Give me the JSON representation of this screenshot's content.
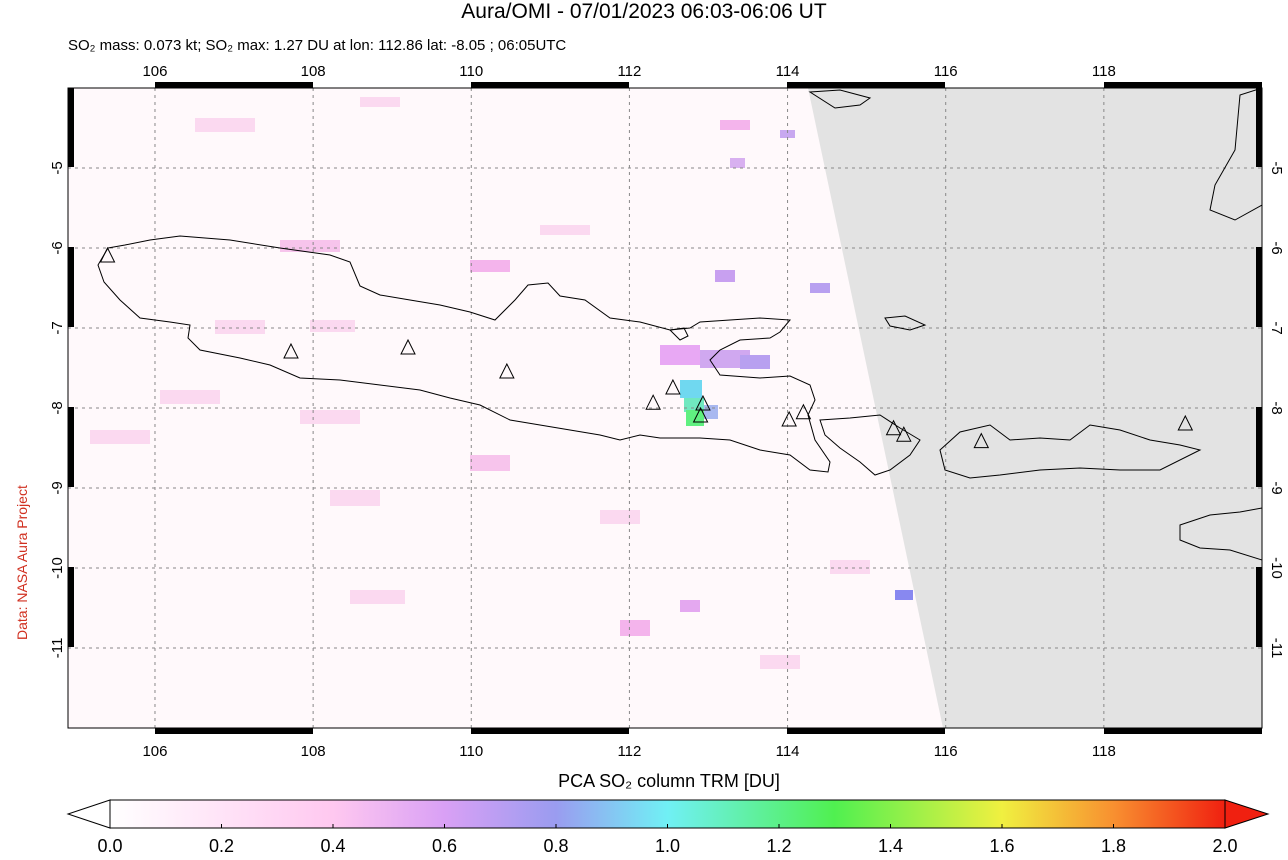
{
  "title": "Aura/OMI - 07/01/2023 06:03-06:06 UT",
  "subtitle": "SO₂ mass: 0.073 kt; SO₂ max: 1.27 DU at lon: 112.86 lat: -8.05 ; 06:05UTC",
  "credit": "Data: NASA Aura Project",
  "map": {
    "xlim": [
      104.9,
      120
    ],
    "ylim": [
      -12,
      -4
    ],
    "xticks": [
      106,
      108,
      110,
      112,
      114,
      116,
      118
    ],
    "yticks": [
      -5,
      -6,
      -7,
      -8,
      -9,
      -10,
      -11
    ],
    "grid": true,
    "volcanoes": {
      "lon": [
        105.4,
        107.72,
        109.2,
        110.45,
        112.3,
        112.55,
        112.93,
        112.9,
        114.02,
        114.2,
        115.34,
        115.47,
        116.45,
        119.03
      ],
      "lat": [
        -6.1,
        -7.3,
        -7.25,
        -7.55,
        -7.94,
        -7.75,
        -7.95,
        -8.1,
        -8.15,
        -8.06,
        -8.26,
        -8.34,
        -8.42,
        -8.2
      ]
    }
  },
  "colorbar": {
    "label": "PCA SO₂ column TRM [DU]",
    "lim": [
      0,
      2
    ],
    "ticks": [
      {
        "value": 0,
        "label": "0.0"
      },
      0.2,
      0.4,
      0.6,
      0.8,
      {
        "value": 1,
        "label": "1.0"
      },
      1.2,
      1.4,
      1.6,
      1.8,
      {
        "value": 2,
        "label": "2.0"
      }
    ]
  }
}
